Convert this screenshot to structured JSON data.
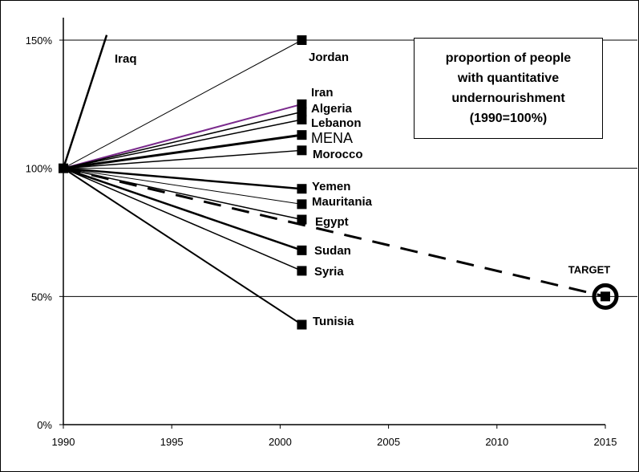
{
  "chart_data": {
    "type": "line",
    "title_lines": [
      "proportion of people",
      "with quantitative",
      "undernourishment",
      "(1990=100%)"
    ],
    "x_ticks": [
      "1990",
      "1995",
      "2000",
      "2005",
      "2010",
      "2015"
    ],
    "y_ticks": [
      "0%",
      "50%",
      "100%",
      "150%"
    ],
    "xlim": [
      1990,
      2015
    ],
    "ylim": [
      0,
      150
    ],
    "grid": "horizontal",
    "series": [
      {
        "name": "Iraq",
        "x": [
          1990,
          1992.0
        ],
        "y": [
          100,
          152
        ],
        "color": "#000000",
        "width": 2.5,
        "marker": false
      },
      {
        "name": "Jordan",
        "x": [
          1990,
          2001
        ],
        "y": [
          100,
          150
        ],
        "color": "#000000",
        "width": 1,
        "marker": true
      },
      {
        "name": "Iran",
        "x": [
          1990,
          2001
        ],
        "y": [
          100,
          125
        ],
        "color": "#7a2a8c",
        "width": 2,
        "marker": true
      },
      {
        "name": "Algeria",
        "x": [
          1990,
          2001
        ],
        "y": [
          100,
          122
        ],
        "color": "#000000",
        "width": 1.5,
        "marker": true
      },
      {
        "name": "Lebanon",
        "x": [
          1990,
          2001
        ],
        "y": [
          100,
          119
        ],
        "color": "#000000",
        "width": 1.5,
        "marker": true
      },
      {
        "name": "MENA",
        "x": [
          1990,
          2001
        ],
        "y": [
          100,
          113
        ],
        "color": "#000000",
        "width": 3,
        "marker": true
      },
      {
        "name": "Morocco",
        "x": [
          1990,
          2001
        ],
        "y": [
          100,
          107
        ],
        "color": "#000000",
        "width": 1.5,
        "marker": true
      },
      {
        "name": "Yemen",
        "x": [
          1990,
          2001
        ],
        "y": [
          100,
          92
        ],
        "color": "#000000",
        "width": 2.5,
        "marker": true
      },
      {
        "name": "Mauritania",
        "x": [
          1990,
          2001
        ],
        "y": [
          100,
          86
        ],
        "color": "#000000",
        "width": 1,
        "marker": true
      },
      {
        "name": "Egypt",
        "x": [
          1990,
          2001
        ],
        "y": [
          100,
          80
        ],
        "color": "#000000",
        "width": 1.5,
        "marker": true
      },
      {
        "name": "Sudan",
        "x": [
          1990,
          2001
        ],
        "y": [
          100,
          68
        ],
        "color": "#000000",
        "width": 2.5,
        "marker": true
      },
      {
        "name": "Syria",
        "x": [
          1990,
          2001
        ],
        "y": [
          100,
          60
        ],
        "color": "#000000",
        "width": 1.5,
        "marker": true
      },
      {
        "name": "Tunisia",
        "x": [
          1990,
          2001
        ],
        "y": [
          100,
          39
        ],
        "color": "#000000",
        "width": 2,
        "marker": true
      }
    ],
    "target": {
      "label": "TARGET",
      "x": [
        1990,
        2015
      ],
      "y": [
        100,
        50
      ],
      "style": "dashed"
    }
  }
}
